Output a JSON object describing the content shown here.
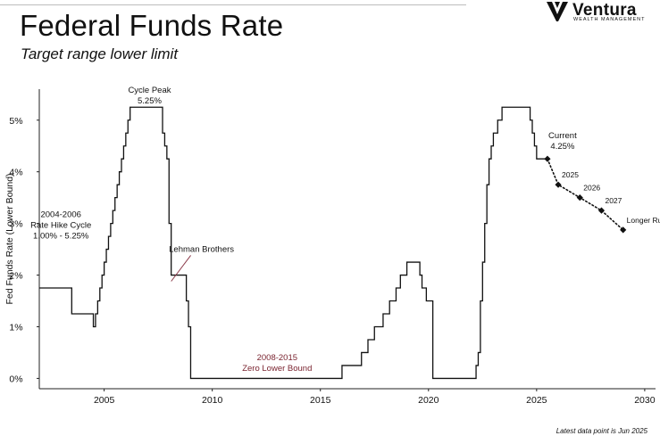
{
  "header": {
    "title": "Federal Funds Rate",
    "subtitle": "Target range lower limit"
  },
  "brand": {
    "name": "Ventura",
    "tagline": "WEALTH MANAGEMENT",
    "icon": "ventura-v-logo-icon"
  },
  "footnote": "Latest data point is Jun 2025",
  "chart_data": {
    "type": "line",
    "title": "Federal Funds Rate",
    "subtitle": "Target range lower limit",
    "xlabel": "",
    "ylabel": "Fed Funds Rate (Lower Bound)",
    "xlim": [
      2002,
      2030.5
    ],
    "ylim": [
      -0.2,
      5.6
    ],
    "x_ticks": [
      2005,
      2010,
      2015,
      2020,
      2025,
      2030
    ],
    "y_ticks": [
      0,
      1,
      2,
      3,
      4,
      5
    ],
    "x_tick_labels": [
      "2005",
      "2010",
      "2015",
      "2020",
      "2025",
      "2030"
    ],
    "y_tick_labels": [
      "0%",
      "1%",
      "2%",
      "3%",
      "4%",
      "5%"
    ],
    "grid": false,
    "legend": "none",
    "series": [
      {
        "style": "step",
        "color": "#111111",
        "x": [
          2002.0,
          2002.9,
          2003.5,
          2004.5,
          2004.6,
          2004.7,
          2004.8,
          2004.9,
          2005.0,
          2005.1,
          2005.2,
          2005.3,
          2005.4,
          2005.5,
          2005.6,
          2005.7,
          2005.8,
          2005.9,
          2006.0,
          2006.1,
          2006.2,
          2006.3,
          2006.4,
          2006.5,
          2007.7,
          2007.8,
          2007.9,
          2008.0,
          2008.1,
          2008.2,
          2008.3,
          2008.8,
          2008.9,
          2009.0,
          2016.0,
          2016.9,
          2017.2,
          2017.5,
          2017.9,
          2018.2,
          2018.5,
          2018.7,
          2019.0,
          2019.6,
          2019.7,
          2019.9,
          2020.2,
          2022.2,
          2022.3,
          2022.4,
          2022.5,
          2022.6,
          2022.7,
          2022.8,
          2022.9,
          2023.0,
          2023.2,
          2023.4,
          2023.6,
          2024.7,
          2024.8,
          2024.9,
          2025.0,
          2025.5
        ],
        "y": [
          1.75,
          1.75,
          1.25,
          1.0,
          1.25,
          1.5,
          1.75,
          2.0,
          2.25,
          2.5,
          2.75,
          3.0,
          3.25,
          3.5,
          3.75,
          4.0,
          4.25,
          4.5,
          4.75,
          5.0,
          5.25,
          5.25,
          5.25,
          5.25,
          4.75,
          4.5,
          4.25,
          3.0,
          2.0,
          2.0,
          2.0,
          1.5,
          1.0,
          0.0,
          0.25,
          0.5,
          0.75,
          1.0,
          1.25,
          1.5,
          1.75,
          2.0,
          2.25,
          2.0,
          1.75,
          1.5,
          0.0,
          0.25,
          0.5,
          1.5,
          2.25,
          3.0,
          3.75,
          4.25,
          4.5,
          4.75,
          5.0,
          5.25,
          5.25,
          5.0,
          4.75,
          4.5,
          4.25,
          4.25
        ]
      },
      {
        "style": "dotted",
        "color": "#111111",
        "marker": "diamond",
        "x": [
          2025.5,
          2026.0,
          2027.0,
          2028.0,
          2029.0
        ],
        "y": [
          4.25,
          3.75,
          3.5,
          3.25,
          2.875
        ],
        "point_labels": [
          "",
          "2025",
          "2026",
          "2027",
          "Longer Run"
        ]
      }
    ],
    "annotations": [
      {
        "text": "Cycle Peak",
        "text2": "5.25%",
        "x": 2007.1,
        "y": 5.53,
        "color": "#111111"
      },
      {
        "text": "2004-2006",
        "text2": "Rate Hike Cycle",
        "text3": "1.00% - 5.25%",
        "x": 2003.0,
        "y": 3.12,
        "color": "#111111"
      },
      {
        "text": "Lehman Brothers",
        "x": 2009.5,
        "y": 2.45,
        "pointer_to": [
          2008.1,
          1.88
        ],
        "color": "#111111",
        "pointer_color": "#8b3a4a"
      },
      {
        "text": "2008-2015",
        "text2": "Zero Lower Bound",
        "x": 2013.0,
        "y": 0.35,
        "color": "#7a2430"
      },
      {
        "text": "Current",
        "text2": "4.25%",
        "x": 2026.2,
        "y": 4.65,
        "color": "#111111"
      }
    ]
  }
}
